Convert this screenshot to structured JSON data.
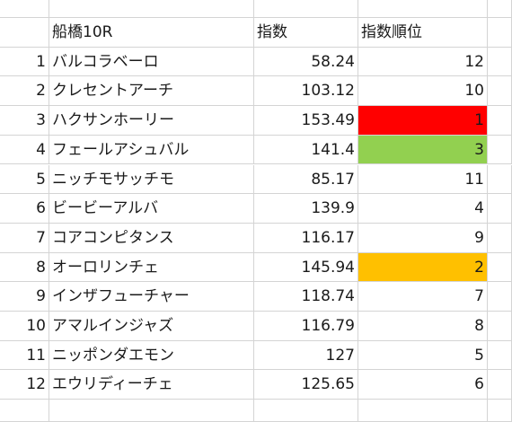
{
  "sheet": {
    "header": {
      "num": "",
      "name": "船橋10R",
      "index": "指数",
      "rank": "指数順位"
    },
    "rows": [
      {
        "num": "1",
        "name": "バルコラベーロ",
        "index": "58.24",
        "rank": "12",
        "rank_fill": ""
      },
      {
        "num": "2",
        "name": "クレセントアーチ",
        "index": "103.12",
        "rank": "10",
        "rank_fill": ""
      },
      {
        "num": "3",
        "name": "ハクサンホーリー",
        "index": "153.49",
        "rank": "1",
        "rank_fill": "#ff0000"
      },
      {
        "num": "4",
        "name": "フェールアシュバル",
        "index": "141.4",
        "rank": "3",
        "rank_fill": "#92d050"
      },
      {
        "num": "5",
        "name": "ニッチモサッチモ",
        "index": "85.17",
        "rank": "11",
        "rank_fill": ""
      },
      {
        "num": "6",
        "name": "ビービーアルバ",
        "index": "139.9",
        "rank": "4",
        "rank_fill": ""
      },
      {
        "num": "7",
        "name": "コアコンピタンス",
        "index": "116.17",
        "rank": "9",
        "rank_fill": ""
      },
      {
        "num": "8",
        "name": "オーロリンチェ",
        "index": "145.94",
        "rank": "2",
        "rank_fill": "#ffc000"
      },
      {
        "num": "9",
        "name": "インザフューチャー",
        "index": "118.74",
        "rank": "7",
        "rank_fill": ""
      },
      {
        "num": "10",
        "name": "アマルインジャズ",
        "index": "116.79",
        "rank": "8",
        "rank_fill": ""
      },
      {
        "num": "11",
        "name": "ニッポンダエモン",
        "index": "127",
        "rank": "5",
        "rank_fill": ""
      },
      {
        "num": "12",
        "name": "エウリディーチェ",
        "index": "125.65",
        "rank": "6",
        "rank_fill": ""
      }
    ],
    "colors": {
      "gridline": "#d4d4d4",
      "text": "#1a1a1a"
    }
  }
}
